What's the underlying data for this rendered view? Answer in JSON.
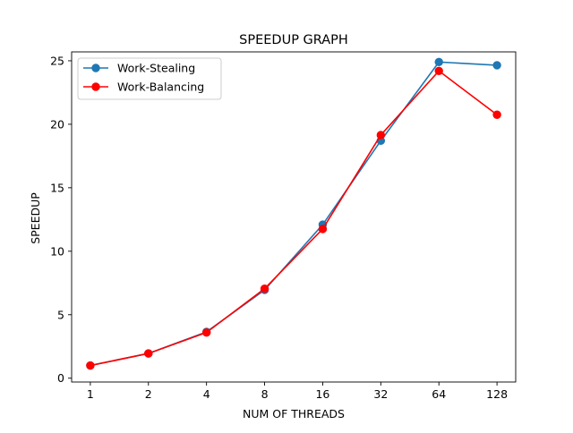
{
  "chart_data": {
    "type": "line",
    "title": "SPEEDUP GRAPH",
    "xlabel": "NUM OF THREADS",
    "ylabel": "SPEEDUP",
    "x_scale": "log2",
    "categories": [
      "1",
      "2",
      "4",
      "8",
      "16",
      "32",
      "64",
      "128"
    ],
    "x": [
      1,
      2,
      4,
      8,
      16,
      32,
      64,
      128
    ],
    "xlim": [
      0.8,
      160
    ],
    "ylim": [
      -0.3,
      25.7
    ],
    "yticks": [
      0,
      5,
      10,
      15,
      20,
      25
    ],
    "grid": false,
    "legend_position": "top-left",
    "series": [
      {
        "name": "Work-Stealing",
        "color": "#1f77b4",
        "marker": "circle",
        "values": [
          1.0,
          1.95,
          3.65,
          6.95,
          12.1,
          18.7,
          24.9,
          24.65
        ]
      },
      {
        "name": "Work-Balancing",
        "color": "#ff0000",
        "marker": "circle",
        "values": [
          1.0,
          1.95,
          3.6,
          7.05,
          11.75,
          19.15,
          24.2,
          20.75
        ]
      }
    ]
  }
}
